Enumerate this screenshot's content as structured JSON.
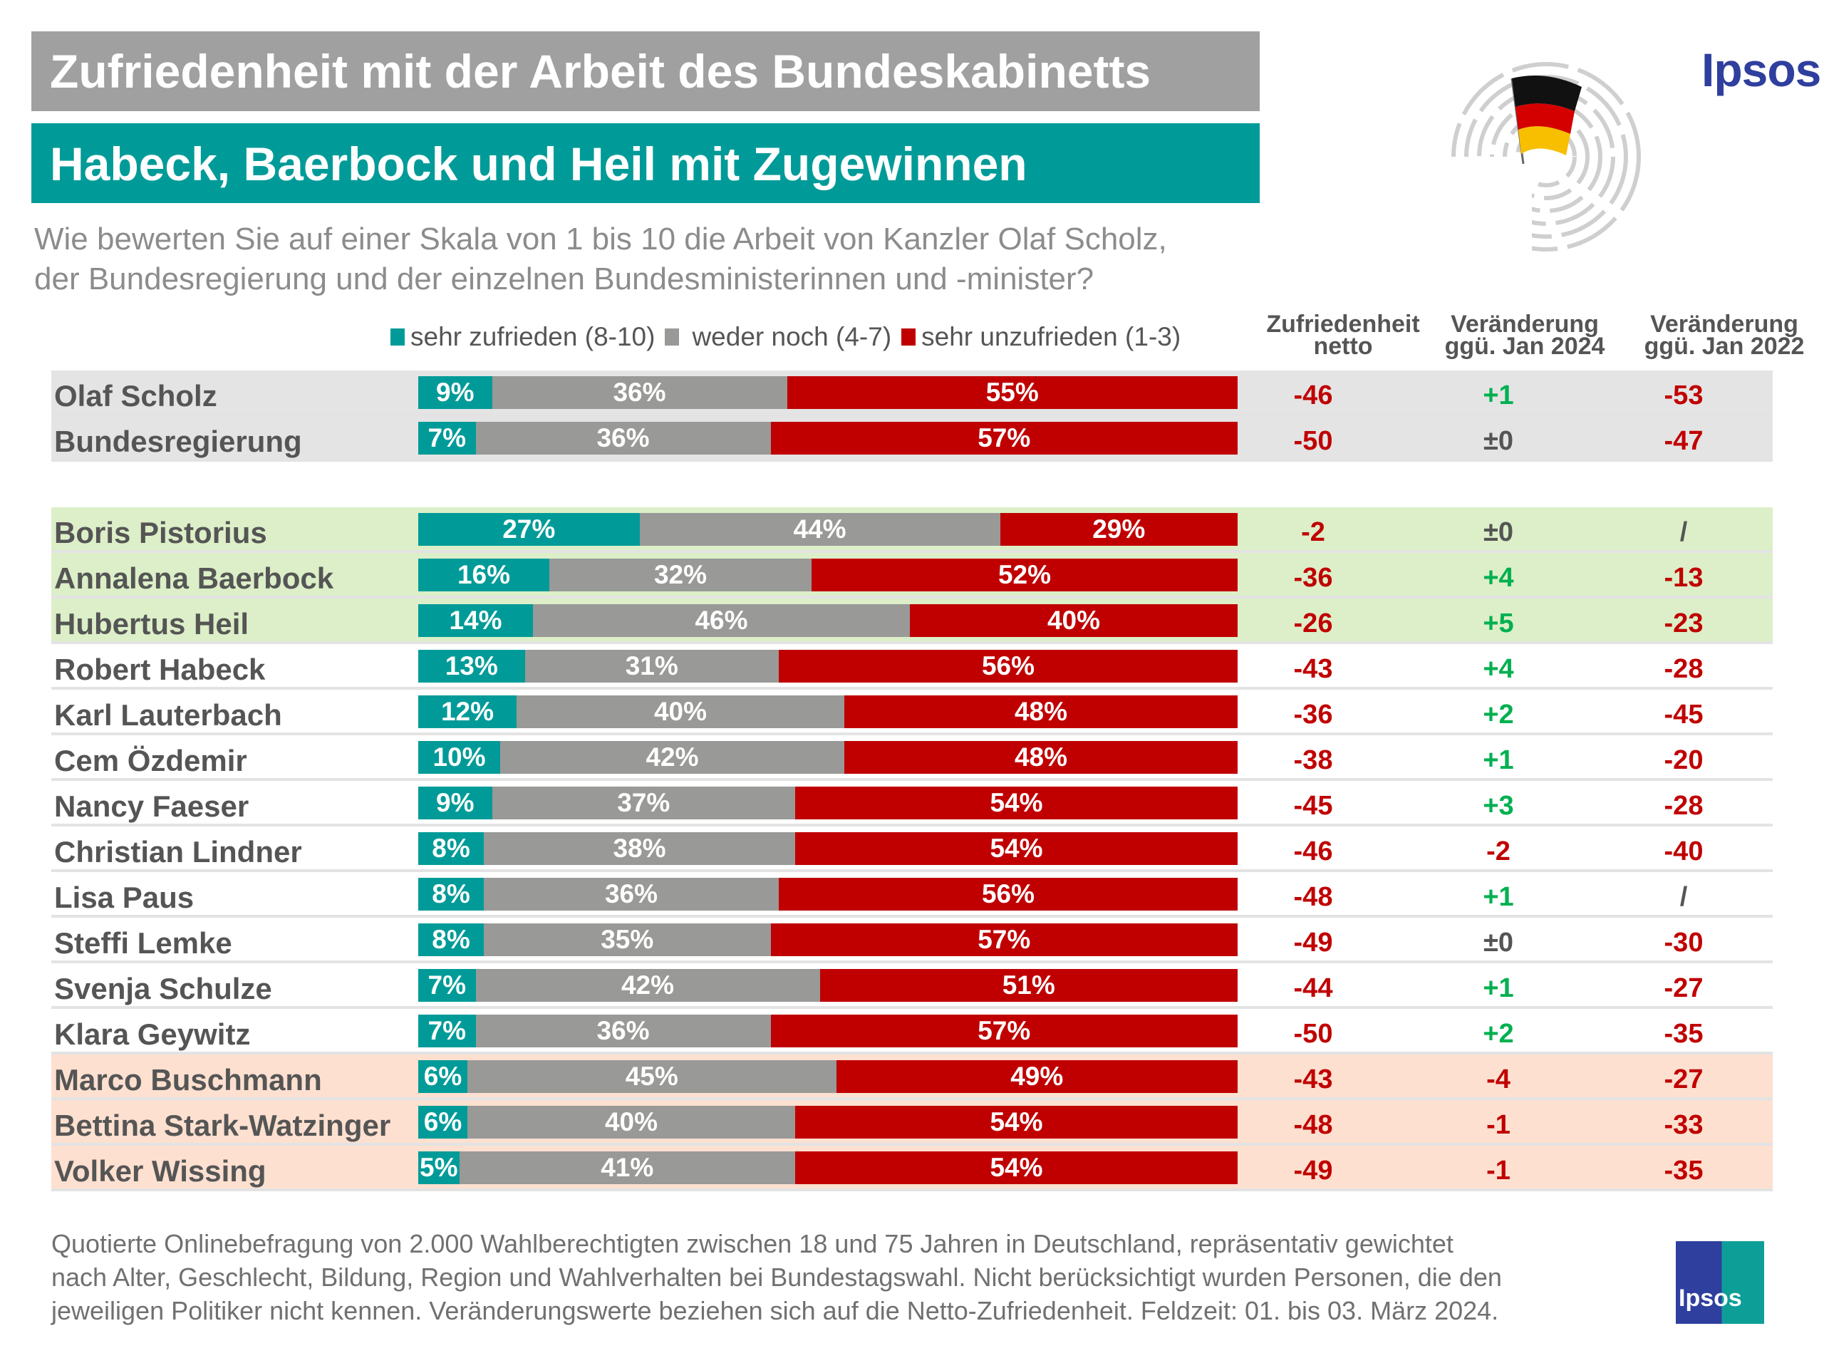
{
  "header": {
    "title": "Zufriedenheit mit der Arbeit des Bundeskabinetts",
    "subtitle": "Habeck, Baerbock und Heil mit Zugewinnen",
    "question_line1": "Wie bewerten Sie auf einer Skala von 1 bis 10 die Arbeit von Kanzler Olaf Scholz,",
    "question_line2": "der Bundesregierung und der einzelnen Bundesministerinnen und -minister?",
    "logo": "Ipsos"
  },
  "colors": {
    "satisfied": "#009b98",
    "neutral": "#999997",
    "dissatisfied": "#c00000",
    "positive_change": "#00b050",
    "negative_value": "#c00000",
    "neutral_value": "#555555",
    "band_gray": "#e4e4e4",
    "band_green": "#dcefc8",
    "band_peach": "#fde0d0"
  },
  "columns": {
    "net_line1": "Zufriedenheit",
    "net_line2": "netto",
    "change24_line1": "Veränderung",
    "change24_line2": "ggü. Jan 2024",
    "change22_line1": "Veränderung",
    "change22_line2": "ggü. Jan 2022"
  },
  "chart_data": {
    "type": "bar",
    "stacked": true,
    "orientation": "horizontal",
    "title": "Zufriedenheit mit der Arbeit des Bundeskabinetts",
    "subtitle": "Habeck, Baerbock und Heil mit Zugewinnen",
    "legend": [
      "sehr zufrieden (8-10)",
      "weder noch (4-7)",
      "sehr unzufrieden (1-3)"
    ],
    "legend_position": "top",
    "xlim": [
      0,
      100
    ],
    "rows": [
      {
        "name": "Olaf Scholz",
        "band": "gray",
        "values": [
          9,
          36,
          55
        ],
        "net": "-46",
        "chg24": "+1",
        "chg22": "-53"
      },
      {
        "name": "Bundesregierung",
        "band": "gray",
        "values": [
          7,
          36,
          57
        ],
        "net": "-50",
        "chg24": "±0",
        "chg22": "-47"
      },
      {
        "name": "Boris Pistorius",
        "band": "green",
        "values": [
          27,
          44,
          29
        ],
        "net": "-2",
        "chg24": "±0",
        "chg22": "/"
      },
      {
        "name": "Annalena Baerbock",
        "band": "green",
        "values": [
          16,
          32,
          52
        ],
        "net": "-36",
        "chg24": "+4",
        "chg22": "-13"
      },
      {
        "name": "Hubertus Heil",
        "band": "green",
        "values": [
          14,
          46,
          40
        ],
        "net": "-26",
        "chg24": "+5",
        "chg22": "-23"
      },
      {
        "name": "Robert Habeck",
        "band": "white",
        "values": [
          13,
          31,
          56
        ],
        "net": "-43",
        "chg24": "+4",
        "chg22": "-28"
      },
      {
        "name": "Karl Lauterbach",
        "band": "white",
        "values": [
          12,
          40,
          48
        ],
        "net": "-36",
        "chg24": "+2",
        "chg22": "-45"
      },
      {
        "name": "Cem Özdemir",
        "band": "white",
        "values": [
          10,
          42,
          48
        ],
        "net": "-38",
        "chg24": "+1",
        "chg22": "-20"
      },
      {
        "name": "Nancy Faeser",
        "band": "white",
        "values": [
          9,
          37,
          54
        ],
        "net": "-45",
        "chg24": "+3",
        "chg22": "-28"
      },
      {
        "name": "Christian Lindner",
        "band": "white",
        "values": [
          8,
          38,
          54
        ],
        "net": "-46",
        "chg24": "-2",
        "chg22": "-40"
      },
      {
        "name": "Lisa Paus",
        "band": "white",
        "values": [
          8,
          36,
          56
        ],
        "net": "-48",
        "chg24": "+1",
        "chg22": "/"
      },
      {
        "name": "Steffi Lemke",
        "band": "white",
        "values": [
          8,
          35,
          57
        ],
        "net": "-49",
        "chg24": "±0",
        "chg22": "-30"
      },
      {
        "name": "Svenja Schulze",
        "band": "white",
        "values": [
          7,
          42,
          51
        ],
        "net": "-44",
        "chg24": "+1",
        "chg22": "-27"
      },
      {
        "name": "Klara Geywitz",
        "band": "white",
        "values": [
          7,
          36,
          57
        ],
        "net": "-50",
        "chg24": "+2",
        "chg22": "-35"
      },
      {
        "name": "Marco Buschmann",
        "band": "peach",
        "values": [
          6,
          45,
          49
        ],
        "net": "-43",
        "chg24": "-4",
        "chg22": "-27"
      },
      {
        "name": "Bettina Stark-Watzinger",
        "band": "peach",
        "values": [
          6,
          40,
          54
        ],
        "net": "-48",
        "chg24": "-1",
        "chg22": "-33"
      },
      {
        "name": "Volker Wissing",
        "band": "peach",
        "values": [
          5,
          41,
          54
        ],
        "net": "-49",
        "chg24": "-1",
        "chg22": "-35"
      }
    ]
  },
  "footer": {
    "line1": "Quotierte Onlinebefragung von 2.000 Wahlberechtigten zwischen 18 und 75 Jahren in Deutschland, repräsentativ gewichtet",
    "line2": "nach Alter, Geschlecht, Bildung, Region und Wahlverhalten bei Bundestagswahl. Nicht berücksichtigt wurden Personen, die den",
    "line3": "jeweiligen Politiker nicht kennen. Veränderungswerte beziehen sich auf die Netto-Zufriedenheit. Feldzeit: 01. bis 03. März 2024.",
    "logo": "Ipsos"
  }
}
